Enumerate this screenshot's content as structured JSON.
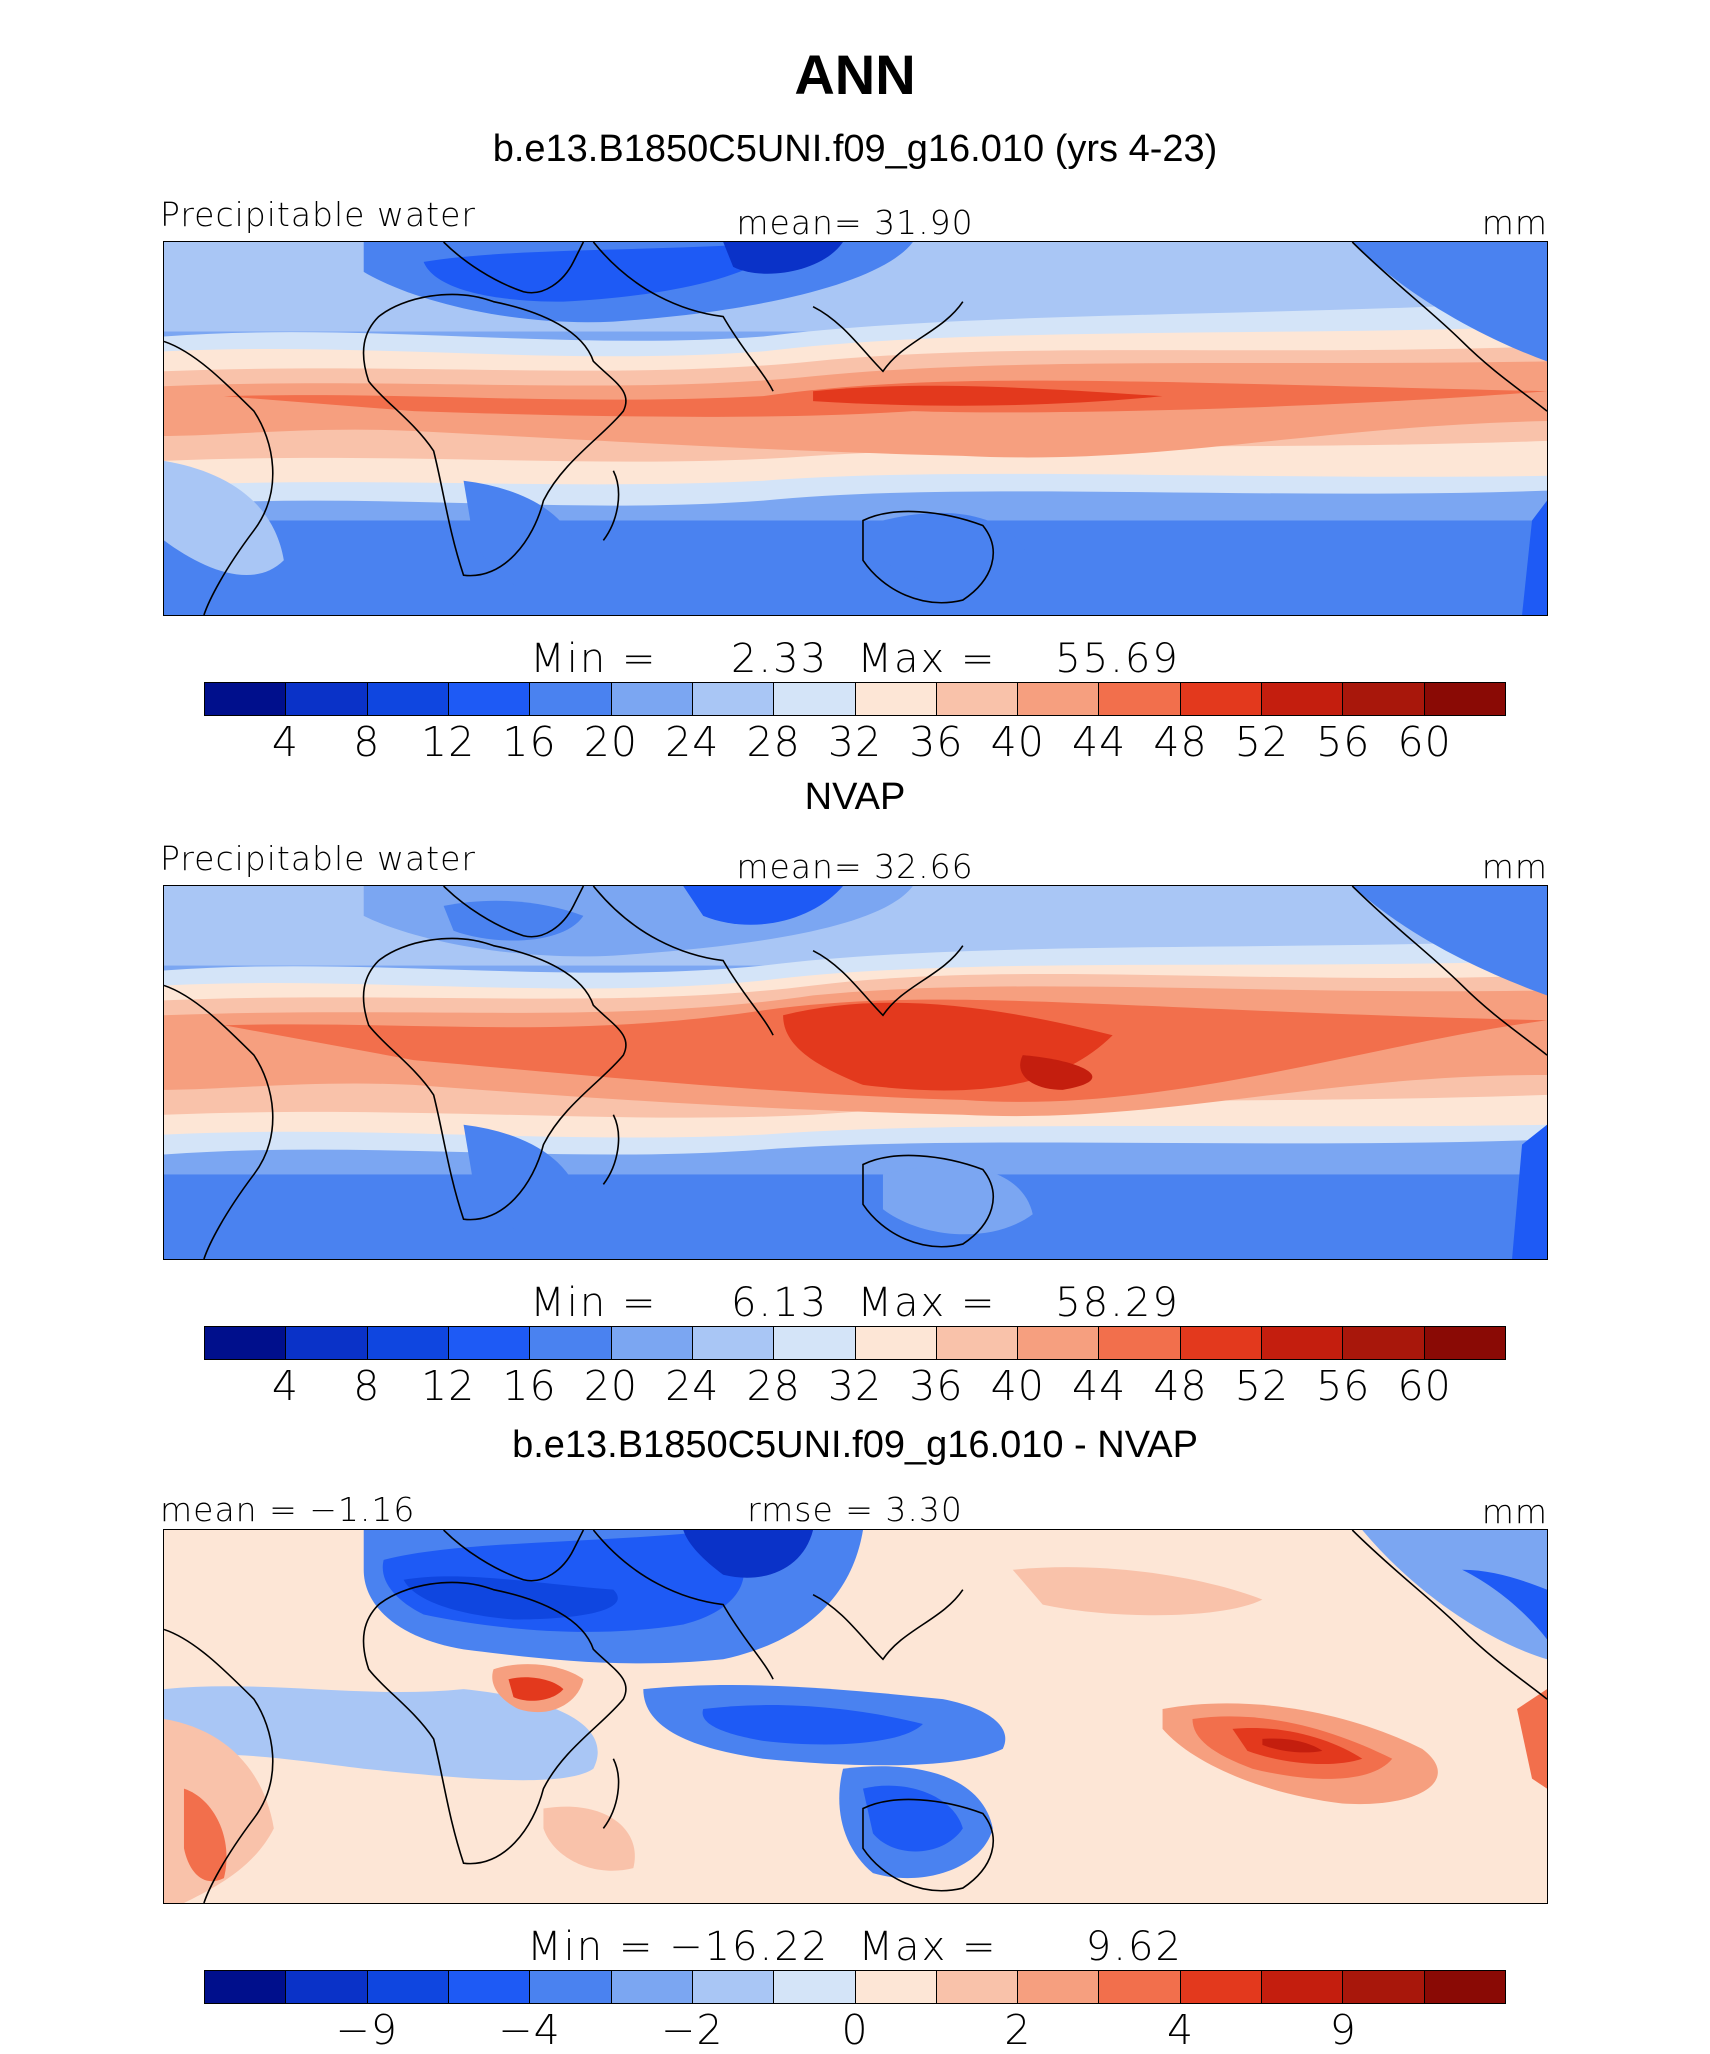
{
  "figure": {
    "title": "ANN"
  },
  "palette": [
    "#000f8c",
    "#0a32c8",
    "#0f46e0",
    "#1e5af5",
    "#4a82f0",
    "#7ba6f2",
    "#a9c6f5",
    "#d4e4f8",
    "#fde6d6",
    "#f9c2aa",
    "#f69f7f",
    "#f26f4c",
    "#e3391d",
    "#c41e0e",
    "#a8170b",
    "#8a0a05"
  ],
  "panels": [
    {
      "title": "b.e13.B1850C5UNI.f09_g16.010 (yrs 4-23)",
      "left_label": "Precipitable water",
      "center_label": "mean=   31.90",
      "units": "mm",
      "min_label": "Min  =",
      "min_value": "2.33",
      "max_label": "Max  =",
      "max_value": "55.69",
      "ticks": [
        "4",
        "8",
        "12",
        "16",
        "20",
        "24",
        "28",
        "32",
        "36",
        "40",
        "44",
        "48",
        "52",
        "56",
        "60"
      ]
    },
    {
      "title": "NVAP",
      "left_label": "Precipitable water",
      "center_label": "mean=   32.66",
      "units": "mm",
      "min_label": "Min  =",
      "min_value": "6.13",
      "max_label": "Max  =",
      "max_value": "58.29",
      "ticks": [
        "4",
        "8",
        "12",
        "16",
        "20",
        "24",
        "28",
        "32",
        "36",
        "40",
        "44",
        "48",
        "52",
        "56",
        "60"
      ]
    },
    {
      "title": "b.e13.B1850C5UNI.f09_g16.010 - NVAP",
      "left_label": "mean  =   −1.16",
      "center_label": "rmse  =     3.30",
      "units": "mm",
      "min_label": "Min  =",
      "min_value": "−16.22",
      "max_label": "Max  =",
      "max_value": "9.62",
      "ticks": [
        "−9",
        "−4",
        "−2",
        "0",
        "2",
        "4",
        "9"
      ]
    }
  ]
}
